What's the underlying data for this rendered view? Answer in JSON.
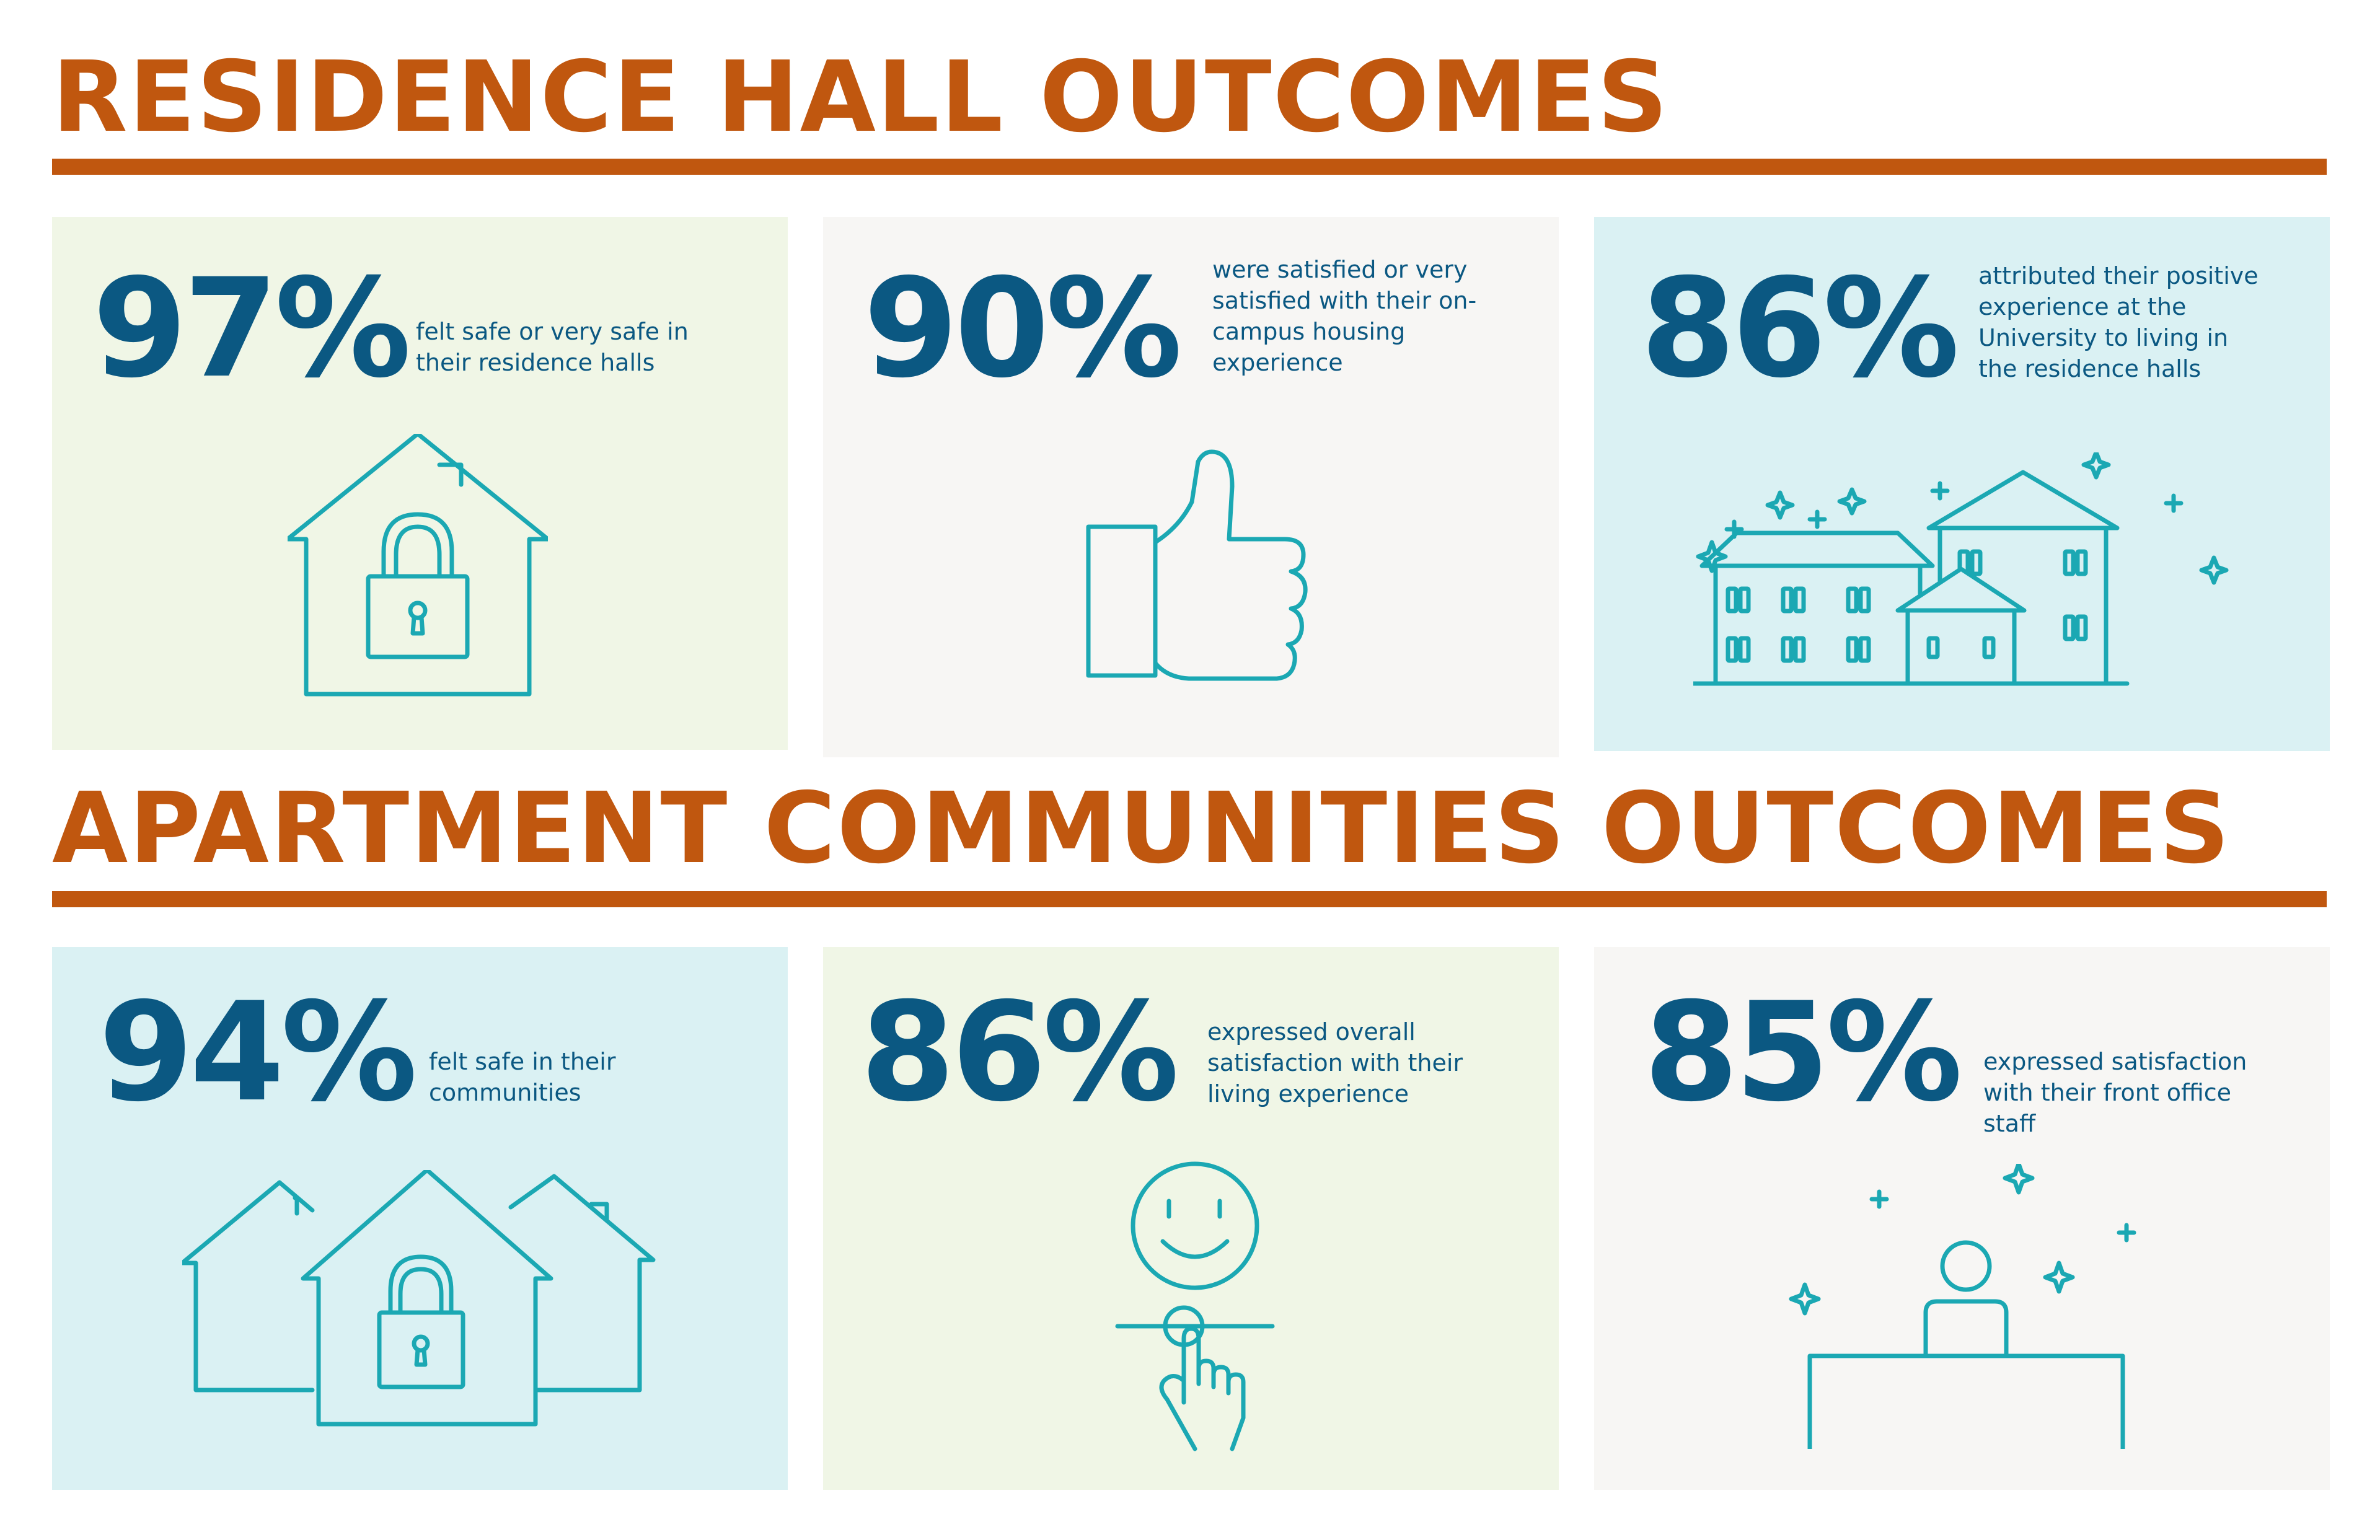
{
  "colors": {
    "heading": "#c0570f",
    "stat": "#0b5882",
    "icon_stroke": "#1ba8b3",
    "card_green": "#f0f6e6",
    "card_gray": "#f7f6f4",
    "card_blue": "#daf1f3"
  },
  "residence_hall": {
    "title": "RESIDENCE HALL OUTCOMES",
    "stats": [
      {
        "percent": "97%",
        "text": "felt safe or very safe in their residence halls",
        "icon": "house-lock-icon",
        "background": "green"
      },
      {
        "percent": "90%",
        "text": "were satisfied or very satisfied with their on-campus housing experience",
        "icon": "thumbs-up-icon",
        "background": "gray"
      },
      {
        "percent": "86%",
        "text": "attributed their positive experience at the University to living in the residence halls",
        "icon": "residence-halls-sparkle-icon",
        "background": "blue"
      }
    ]
  },
  "apartment_communities": {
    "title": "APARTMENT COMMUNITIES OUTCOMES",
    "stats": [
      {
        "percent": "94%",
        "text": "felt safe in their communities",
        "icon": "houses-lock-icon",
        "background": "blue"
      },
      {
        "percent": "86%",
        "text": "expressed overall satisfaction with their living experience",
        "icon": "smiley-touch-icon",
        "background": "green"
      },
      {
        "percent": "85%",
        "text": "expressed satisfaction with their front office staff",
        "icon": "front-desk-staff-icon",
        "background": "gray"
      }
    ]
  }
}
